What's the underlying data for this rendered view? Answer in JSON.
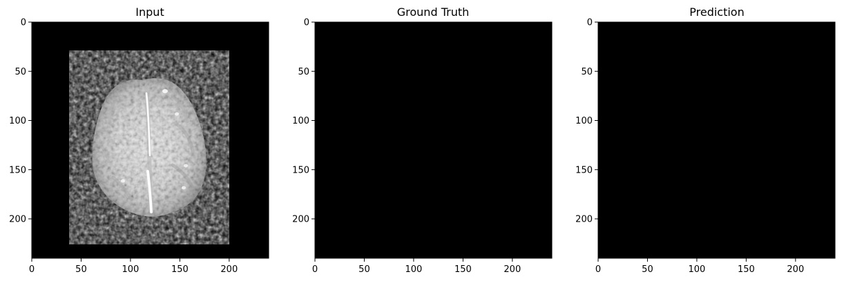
{
  "figure": {
    "panels": [
      {
        "id": "input",
        "title": "Input",
        "image": "brain-mri-slice"
      },
      {
        "id": "ground-truth",
        "title": "Ground Truth",
        "image": "empty-black-mask"
      },
      {
        "id": "prediction",
        "title": "Prediction",
        "image": "empty-black-mask"
      }
    ],
    "x_ticks": [
      "0",
      "50",
      "100",
      "150",
      "200"
    ],
    "y_ticks": [
      "0",
      "50",
      "100",
      "150",
      "200"
    ],
    "x_tick_values": [
      0,
      50,
      100,
      150,
      200
    ],
    "y_tick_values": [
      0,
      50,
      100,
      150,
      200
    ],
    "image_extent": [
      0,
      240
    ],
    "colors": {
      "background": "#ffffff",
      "image_background": "#000000",
      "axis": "#000000"
    }
  }
}
